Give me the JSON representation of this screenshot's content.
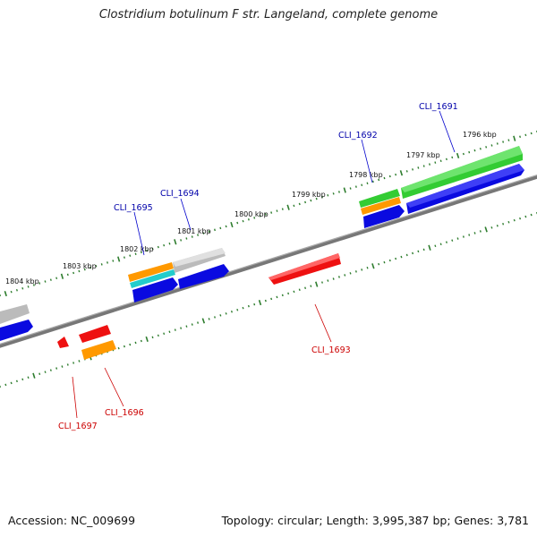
{
  "title": "Clostridium botulinum F str. Langeland, complete genome",
  "footer": {
    "accession": "Accession: NC_009699",
    "topology": "Topology: circular; Length: 3,995,387 bp; Genes: 3,781"
  },
  "kbp_labels": [
    "1796 kbp",
    "1797 kbp",
    "1798 kbp",
    "1799 kbp",
    "1800 kbp",
    "1801 kbp",
    "1802 kbp",
    "1803 kbp",
    "1804 kbp"
  ],
  "gene_labels_top": [
    "CLI_1691",
    "CLI_1692",
    "CLI_1694",
    "CLI_1695"
  ],
  "gene_labels_bottom": [
    "CLI_1693",
    "CLI_1696",
    "CLI_1697"
  ],
  "colors": {
    "backbone": "#808080",
    "ticks": "#2e7d2e",
    "label_top": "#0000aa",
    "label_bottom": "#cc0000",
    "blue": "#0a0ae0",
    "green": "#33cc33",
    "gray": "#c0c0c0",
    "orange": "#ff9900",
    "cyan": "#22cccc",
    "red": "#ee1111"
  }
}
